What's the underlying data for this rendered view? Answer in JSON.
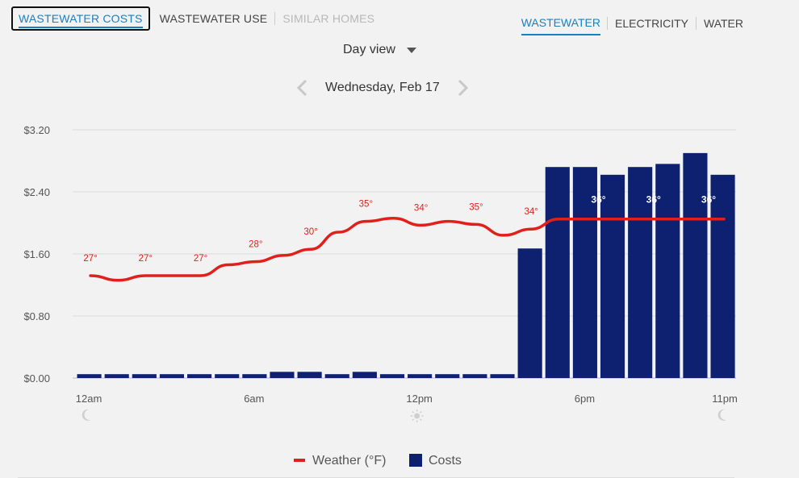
{
  "tabs_left": [
    {
      "label": "WASTEWATER COSTS",
      "state": "active"
    },
    {
      "label": "WASTEWATER USE",
      "state": "normal"
    },
    {
      "label": "SIMILAR HOMES",
      "state": "disabled"
    }
  ],
  "tabs_right": [
    {
      "label": "WASTEWATER",
      "state": "active"
    },
    {
      "label": "ELECTRICITY",
      "state": "normal"
    },
    {
      "label": "WATER",
      "state": "normal"
    }
  ],
  "view_select": {
    "label": "Day view",
    "icon": "chevron-down-icon"
  },
  "date_nav": {
    "label": "Wednesday, Feb 17",
    "prev_icon": "chevron-left-icon",
    "next_icon": "chevron-right-icon"
  },
  "legend": {
    "weather": "Weather (°F)",
    "costs": "Costs"
  },
  "colors": {
    "bar": "#0d2170",
    "line": "#e0201a",
    "accent": "#1a7fc1",
    "grid": "#d9d9d9"
  },
  "chart_data": {
    "type": "bar",
    "ylim": [
      0,
      3.2
    ],
    "y_ticks": [
      "$0.00",
      "$0.80",
      "$1.60",
      "$2.40",
      "$3.20"
    ],
    "y_tick_values": [
      0,
      0.8,
      1.6,
      2.4,
      3.2
    ],
    "x_tick_labels": [
      {
        "hour": 0,
        "label": "12am",
        "icon": "moon-icon"
      },
      {
        "hour": 6,
        "label": "6am",
        "icon": ""
      },
      {
        "hour": 12,
        "label": "12pm",
        "icon": "sun-icon"
      },
      {
        "hour": 18,
        "label": "6pm",
        "icon": ""
      },
      {
        "hour": 23,
        "label": "11pm",
        "icon": "moon-icon"
      }
    ],
    "series": [
      {
        "name": "Costs",
        "type": "bar",
        "values": [
          0.05,
          0.05,
          0.05,
          0.05,
          0.05,
          0.05,
          0.05,
          0.08,
          0.08,
          0.05,
          0.08,
          0.05,
          0.05,
          0.05,
          0.05,
          0.05,
          1.67,
          2.72,
          2.72,
          2.62,
          2.72,
          2.76,
          2.9,
          2.62
        ]
      },
      {
        "name": "Weather (°F)",
        "type": "line",
        "values": [
          1.32,
          1.26,
          1.32,
          1.32,
          1.32,
          1.46,
          1.5,
          1.58,
          1.66,
          1.88,
          2.02,
          2.06,
          1.97,
          2.02,
          1.98,
          1.84,
          1.92,
          2.05,
          2.05,
          2.05,
          2.05,
          2.05,
          2.05,
          2.05
        ]
      }
    ],
    "temperature_labels": [
      {
        "hour": 0,
        "label": "27°"
      },
      {
        "hour": 2,
        "label": "27°"
      },
      {
        "hour": 4,
        "label": "27°"
      },
      {
        "hour": 6,
        "label": "28°"
      },
      {
        "hour": 8,
        "label": "30°"
      },
      {
        "hour": 10,
        "label": "35°"
      },
      {
        "hour": 12,
        "label": "34°"
      },
      {
        "hour": 14,
        "label": "35°"
      },
      {
        "hour": 16,
        "label": "34°"
      },
      {
        "hour": 18,
        "label": "36°"
      },
      {
        "hour": 20,
        "label": "36°"
      },
      {
        "hour": 22,
        "label": "36°"
      }
    ]
  }
}
